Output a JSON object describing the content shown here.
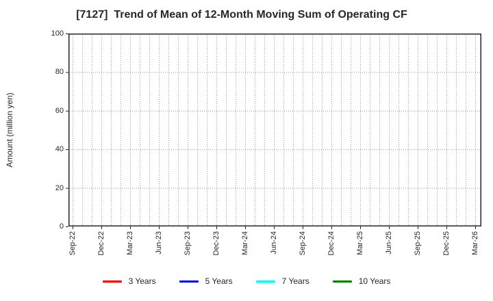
{
  "chart_data": {
    "type": "line",
    "title": "[7127]  Trend of Mean of 12-Month Moving Sum of Operating CF",
    "xlabel": "",
    "ylabel": "Amount (million yen)",
    "ylim": [
      0,
      100
    ],
    "yticks": [
      0,
      20,
      40,
      60,
      80,
      100
    ],
    "x_tick_labels": [
      "Sep-22",
      "Dec-22",
      "Mar-23",
      "Jun-23",
      "Sep-23",
      "Dec-23",
      "Mar-24",
      "Jun-24",
      "Sep-24",
      "Dec-24",
      "Mar-25",
      "Jun-25",
      "Sep-25",
      "Dec-25",
      "Mar-26"
    ],
    "months_per_labeled_tick": 3,
    "total_months": 42,
    "grid": true,
    "grid_style": "dotted",
    "legend_position": "bottom-center",
    "series": [
      {
        "name": "3 Years",
        "color": "#ff0000",
        "values": []
      },
      {
        "name": "5 Years",
        "color": "#0000ff",
        "values": []
      },
      {
        "name": "7 Years",
        "color": "#00ffff",
        "values": []
      },
      {
        "name": "10 Years",
        "color": "#008000",
        "values": []
      }
    ]
  },
  "colors": {
    "background": "#ffffff",
    "axis_border": "#262626",
    "grid_line": "#999999",
    "text": "#262626"
  }
}
